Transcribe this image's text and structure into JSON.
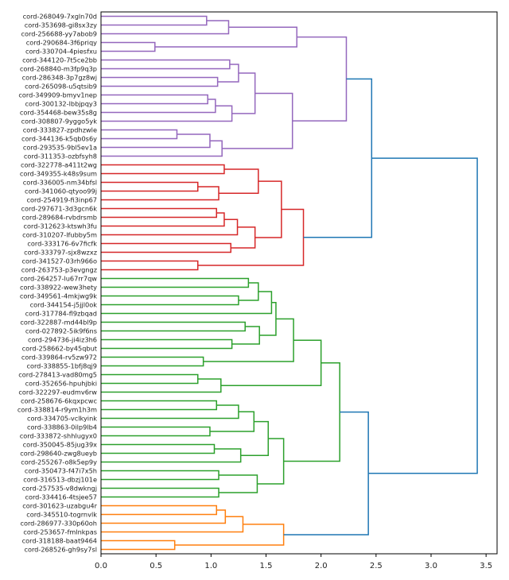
{
  "chart_data": {
    "type": "dendrogram",
    "orientation": "right",
    "xlim": [
      0,
      3.6
    ],
    "xticks": [
      "0.0",
      "0.5",
      "1.0",
      "1.5",
      "2.0",
      "2.5",
      "3.0",
      "3.5"
    ],
    "xtick_values": [
      0,
      0.5,
      1.0,
      1.5,
      2.0,
      2.5,
      3.0,
      3.5
    ],
    "above_threshold_color": "#1f77b4",
    "leaves": [
      "cord-268049-7xgln70d",
      "cord-353698-gi8sx3zy",
      "cord-256688-yy7abob9",
      "cord-290684-3f6priqy",
      "cord-330704-4piesfxu",
      "cord-344120-7t5ce2bb",
      "cord-268840-m3fp9q3p",
      "cord-286348-3p7gz8wj",
      "cord-265098-u5qtsib9",
      "cord-349909-bmyv1nep",
      "cord-300132-lbbjpqy3",
      "cord-354468-bew35s8g",
      "cord-308807-9yggo5yk",
      "cord-333827-zpdhzwle",
      "cord-344136-k5qb0s6y",
      "cord-293535-9bl5ev1a",
      "cord-311353-ozbfsyh8",
      "cord-322778-a411t2wg",
      "cord-349355-k48s9sum",
      "cord-336005-nm34bfsl",
      "cord-341060-qtyoo99j",
      "cord-254919-fi3inp67",
      "cord-297671-3d3gcn6k",
      "cord-289684-rvbdrsmb",
      "cord-312623-ktswh3fu",
      "cord-310207-lfubby5m",
      "cord-333176-6v7ficfk",
      "cord-333797-sjx8wzxz",
      "cord-341527-03rh966o",
      "cord-263753-p3evgngz",
      "cord-264257-lu67rr7qw",
      "cord-338922-wew3hety",
      "cord-349561-4mkjwg9k",
      "cord-344154-j5jjl0ok",
      "cord-317784-fl9zbqad",
      "cord-322887-md44bl9p",
      "cord-027892-5ik9f6ns",
      "cord-294736-ji4iz3h6",
      "cord-258662-by45qbut",
      "cord-339864-rv5zw972",
      "cord-338855-1bfj8qj9",
      "cord-278413-vad80mg5",
      "cord-352656-hpuhjbki",
      "cord-322297-eudmv6rw",
      "cord-258676-6kqxpcwc",
      "cord-338814-r9ym1h3m",
      "cord-334705-vclkyink",
      "cord-338863-0ilp9lb4",
      "cord-333872-shhlugyx0",
      "cord-350045-85jug39x",
      "cord-298640-zwg8ueyb",
      "cord-255267-o8k5ep9y",
      "cord-350473-f47i7x5h",
      "cord-316513-dbzj101e",
      "cord-257535-v8dwkngj",
      "cord-334416-4tsjee57",
      "cord-301623-uzabgu4r",
      "cord-345510-togrnvlk",
      "cord-286977-330p60oh",
      "cord-253657-fmlnkpas",
      "cord-318188-baat9464",
      "cord-268526-gh9sy7sl"
    ],
    "tree": {
      "h": 3.42,
      "c": [
        {
          "h": 2.46,
          "c": [
            {
              "color": "#9467bd",
              "h": 2.23,
              "c": [
                {
                  "h": 1.78,
                  "c": [
                    {
                      "h": 1.16,
                      "c": [
                        {
                          "h": 0.96,
                          "c": [
                            0,
                            1
                          ]
                        },
                        2
                      ]
                    },
                    {
                      "h": 0.49,
                      "c": [
                        3,
                        4
                      ]
                    }
                  ]
                },
                {
                  "h": 1.74,
                  "c": [
                    {
                      "h": 1.4,
                      "c": [
                        {
                          "h": 1.25,
                          "c": [
                            {
                              "h": 1.17,
                              "c": [
                                5,
                                6
                              ]
                            },
                            {
                              "h": 1.06,
                              "c": [
                                7,
                                8
                              ]
                            }
                          ]
                        },
                        {
                          "h": 1.19,
                          "c": [
                            {
                              "h": 1.04,
                              "c": [
                                {
                                  "h": 0.97,
                                  "c": [
                                    9,
                                    10
                                  ]
                                },
                                11
                              ]
                            },
                            12
                          ]
                        }
                      ]
                    },
                    {
                      "h": 1.1,
                      "c": [
                        {
                          "h": 0.99,
                          "c": [
                            {
                              "h": 0.69,
                              "c": [
                                13,
                                14
                              ]
                            },
                            15
                          ]
                        },
                        16
                      ]
                    }
                  ]
                }
              ]
            },
            {
              "color": "#d62728",
              "h": 1.84,
              "c": [
                {
                  "h": 1.64,
                  "c": [
                    {
                      "h": 1.43,
                      "c": [
                        {
                          "h": 1.12,
                          "c": [
                            17,
                            18
                          ]
                        },
                        {
                          "h": 1.07,
                          "c": [
                            {
                              "h": 0.88,
                              "c": [
                                19,
                                20
                              ]
                            },
                            21
                          ]
                        }
                      ]
                    },
                    {
                      "h": 1.4,
                      "c": [
                        {
                          "h": 1.24,
                          "c": [
                            {
                              "h": 1.12,
                              "c": [
                                {
                                  "h": 1.05,
                                  "c": [
                                    22,
                                    23
                                  ]
                                },
                                24
                              ]
                            },
                            25
                          ]
                        },
                        {
                          "h": 1.18,
                          "c": [
                            26,
                            27
                          ]
                        }
                      ]
                    }
                  ]
                },
                {
                  "h": 0.88,
                  "c": [
                    28,
                    29
                  ]
                }
              ]
            }
          ]
        },
        {
          "h": 2.43,
          "c": [
            {
              "color": "#2ca02c",
              "h": 2.17,
              "c": [
                {
                  "h": 2.0,
                  "c": [
                    {
                      "h": 1.75,
                      "c": [
                        {
                          "h": 1.59,
                          "c": [
                            {
                              "h": 1.55,
                              "c": [
                                {
                                  "h": 1.43,
                                  "c": [
                                    {
                                      "h": 1.34,
                                      "c": [
                                        30,
                                        31
                                      ]
                                    },
                                    {
                                      "h": 1.25,
                                      "c": [
                                        32,
                                        33
                                      ]
                                    }
                                  ]
                                },
                                34
                              ]
                            },
                            {
                              "h": 1.44,
                              "c": [
                                {
                                  "h": 1.31,
                                  "c": [
                                    35,
                                    36
                                  ]
                                },
                                {
                                  "h": 1.19,
                                  "c": [
                                    37,
                                    38
                                  ]
                                }
                              ]
                            }
                          ]
                        },
                        {
                          "h": 0.93,
                          "c": [
                            39,
                            40
                          ]
                        }
                      ]
                    },
                    {
                      "h": 1.09,
                      "c": [
                        {
                          "h": 0.88,
                          "c": [
                            41,
                            42
                          ]
                        },
                        43
                      ]
                    }
                  ]
                },
                {
                  "h": 1.66,
                  "c": [
                    {
                      "h": 1.52,
                      "c": [
                        {
                          "h": 1.39,
                          "c": [
                            {
                              "h": 1.25,
                              "c": [
                                {
                                  "h": 1.05,
                                  "c": [
                                    44,
                                    45
                                  ]
                                },
                                46
                              ]
                            },
                            {
                              "h": 0.99,
                              "c": [
                                47,
                                48
                              ]
                            }
                          ]
                        },
                        {
                          "h": 1.27,
                          "c": [
                            {
                              "h": 1.03,
                              "c": [
                                49,
                                50
                              ]
                            },
                            51
                          ]
                        }
                      ]
                    },
                    {
                      "h": 1.42,
                      "c": [
                        {
                          "h": 1.07,
                          "c": [
                            52,
                            53
                          ]
                        },
                        {
                          "h": 1.07,
                          "c": [
                            54,
                            55
                          ]
                        }
                      ]
                    }
                  ]
                }
              ]
            },
            {
              "color": "#ff7f0e",
              "h": 1.66,
              "c": [
                {
                  "h": 1.29,
                  "c": [
                    {
                      "h": 1.13,
                      "c": [
                        {
                          "h": 1.05,
                          "c": [
                            56,
                            57
                          ]
                        },
                        58
                      ]
                    },
                    59
                  ]
                },
                {
                  "h": 0.67,
                  "c": [
                    60,
                    61
                  ]
                }
              ]
            }
          ]
        }
      ]
    }
  }
}
